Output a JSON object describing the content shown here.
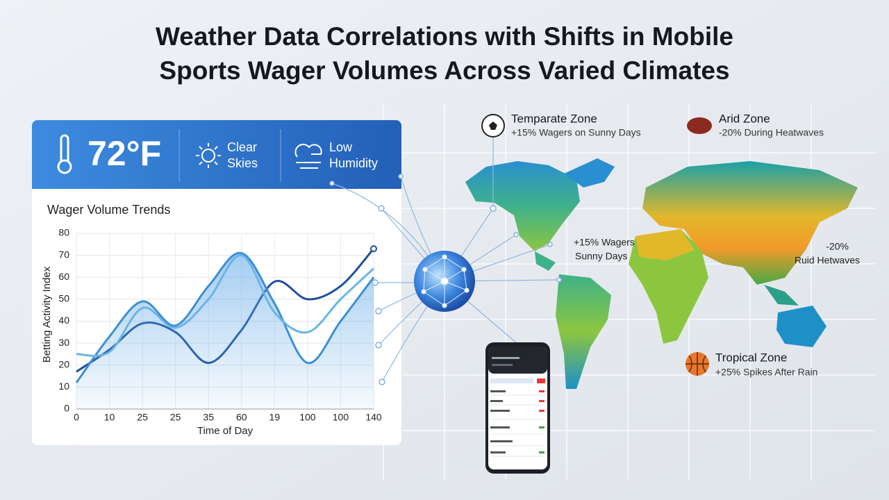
{
  "header": {
    "title_lines": [
      "Weather Data Correlations with Shifts in Mobile",
      "Sports Wager Volumes Across Varied Climates"
    ]
  },
  "weather_bar": {
    "temperature": "72°F",
    "conditions": [
      {
        "lines": [
          "Clear",
          "Skies"
        ]
      },
      {
        "lines": [
          "Low",
          "Humidity"
        ]
      }
    ]
  },
  "chart": {
    "type": "line",
    "title": "Wager Volume Trends",
    "ylabel": "Betting Activity Index",
    "xlabel": "Time of Day",
    "categories": [
      "0",
      "10",
      "25",
      "25",
      "35",
      "60",
      "19",
      "100",
      "100",
      "140"
    ],
    "ylim": [
      0,
      80
    ],
    "yticks": [
      0,
      10,
      20,
      30,
      40,
      50,
      60,
      70,
      80
    ],
    "grid": true,
    "series": [
      {
        "color": "#1f4e9c",
        "values": [
          17,
          27,
          39,
          35,
          21,
          36,
          58,
          50,
          56,
          73
        ]
      },
      {
        "color": "#3a8fd6",
        "values": [
          12,
          33,
          49,
          38,
          56,
          71,
          48,
          21,
          40,
          60
        ]
      },
      {
        "color": "#6ab4e8",
        "values": [
          25,
          26,
          46,
          37,
          50,
          70,
          44,
          35,
          50,
          64
        ]
      }
    ]
  },
  "zones": [
    {
      "title": "Temparate Zone",
      "detail": "+15% Wagers on Sunny Days"
    },
    {
      "title": "Arid Zone",
      "detail": "-20% During Heatwaves"
    },
    {
      "title": "Tropical Zone",
      "detail": "+25% Spikes After Rain"
    }
  ],
  "map_labels": [
    {
      "lines": [
        "+15% Wagers",
        "Sunny Days"
      ]
    },
    {
      "lines": [
        "-20%",
        "Ruid Hetwaves"
      ]
    }
  ]
}
